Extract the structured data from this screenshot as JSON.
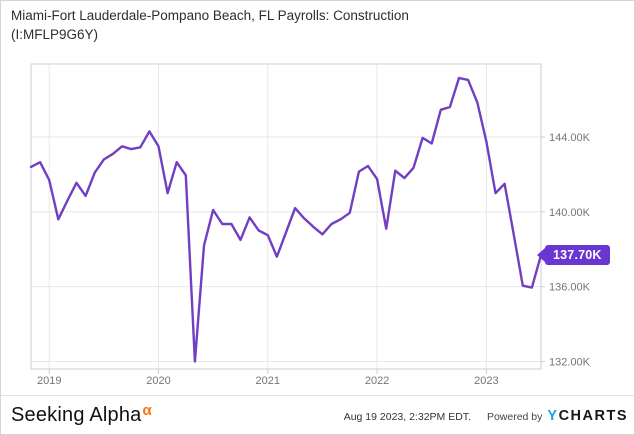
{
  "header": {
    "title_line1": "Miami-Fort Lauderdale-Pompano Beach, FL Payrolls: Construction",
    "title_line2": "(I:MFLP9G6Y)"
  },
  "chart_data": {
    "type": "line",
    "title": "Miami-Fort Lauderdale-Pompano Beach, FL Payrolls: Construction",
    "series_id": "I:MFLP9G6Y",
    "unit": "thousands of payrolls",
    "x": [
      "2018-11",
      "2018-12",
      "2019-01",
      "2019-02",
      "2019-03",
      "2019-04",
      "2019-05",
      "2019-06",
      "2019-07",
      "2019-08",
      "2019-09",
      "2019-10",
      "2019-11",
      "2019-12",
      "2020-01",
      "2020-02",
      "2020-03",
      "2020-04",
      "2020-05",
      "2020-06",
      "2020-07",
      "2020-08",
      "2020-09",
      "2020-10",
      "2020-11",
      "2020-12",
      "2021-01",
      "2021-02",
      "2021-03",
      "2021-04",
      "2021-05",
      "2021-06",
      "2021-07",
      "2021-08",
      "2021-09",
      "2021-10",
      "2021-11",
      "2021-12",
      "2022-01",
      "2022-02",
      "2022-03",
      "2022-04",
      "2022-05",
      "2022-06",
      "2022-07",
      "2022-08",
      "2022-09",
      "2022-10",
      "2022-11",
      "2022-12",
      "2023-01",
      "2023-02",
      "2023-03",
      "2023-04",
      "2023-05",
      "2023-06",
      "2023-07"
    ],
    "values": [
      142.4,
      142.65,
      141.7,
      139.6,
      140.6,
      141.55,
      140.85,
      142.1,
      142.8,
      143.1,
      143.5,
      143.35,
      143.45,
      144.3,
      143.5,
      141.0,
      142.65,
      141.95,
      132.0,
      138.2,
      140.1,
      139.35,
      139.35,
      138.5,
      139.7,
      139.0,
      138.75,
      137.6,
      138.9,
      140.2,
      139.65,
      139.2,
      138.8,
      139.35,
      139.6,
      139.95,
      142.15,
      142.45,
      141.75,
      139.1,
      142.2,
      141.8,
      142.35,
      143.95,
      143.65,
      145.45,
      145.6,
      147.15,
      147.05,
      145.85,
      143.75,
      141.0,
      141.5,
      138.8,
      136.05,
      135.95,
      137.7
    ],
    "y_ticks": {
      "values": [
        144,
        140,
        136,
        132
      ],
      "labels": [
        "144.00K",
        "140.00K",
        "136.00K",
        "132.00K"
      ]
    },
    "x_ticks": {
      "labels": [
        "2019",
        "2020",
        "2021",
        "2022",
        "2023"
      ]
    },
    "ylim": [
      131.6,
      147.9
    ],
    "grid": true,
    "legend_position": "none",
    "last_value_label": "137.70K"
  },
  "footer": {
    "brand": "Seeking Alpha",
    "brand_alpha": "α",
    "timestamp": "Aug 19 2023, 2:32PM EDT.",
    "powered_by": "Powered by",
    "ycharts_y": "Y",
    "ycharts_rest": "CHARTS"
  },
  "colors": {
    "line": "#713EC4",
    "badge_bg": "#6A36D1",
    "badge_text": "#ffffff",
    "gridline": "#e7e7e7",
    "frame": "#cfcfcf",
    "tick_text": "#757575",
    "alpha_orange": "#FB7417",
    "ycharts_blue": "#1E9FF2",
    "ycharts_dark": "#14171C"
  }
}
